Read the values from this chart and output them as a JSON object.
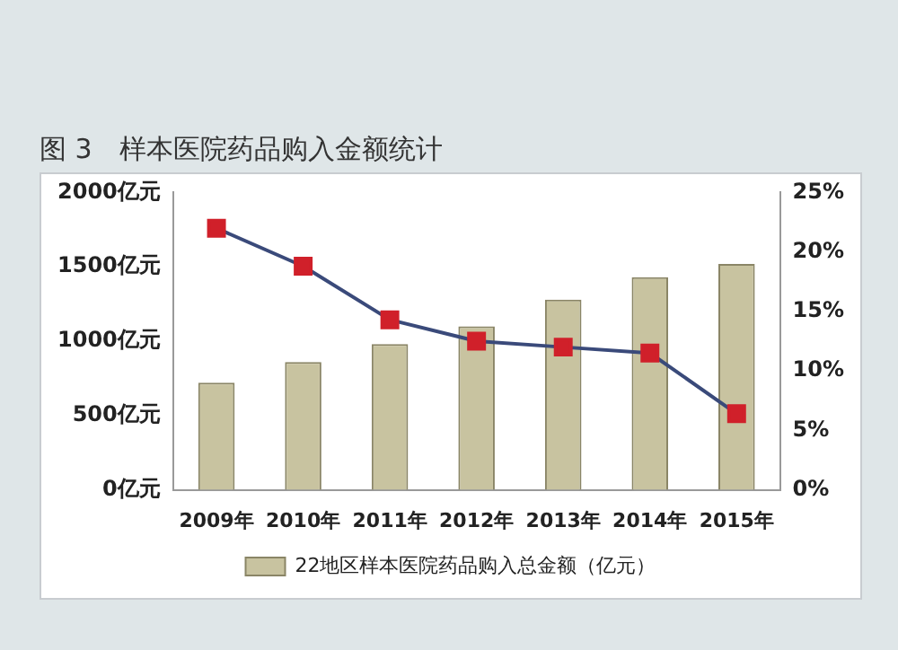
{
  "chart_data": {
    "type": "bar",
    "title": "图 3　样本医院药品购入金额统计",
    "categories": [
      "2009年",
      "2010年",
      "2011年",
      "2012年",
      "2013年",
      "2014年",
      "2015年"
    ],
    "series": [
      {
        "name": "22地区样本医院药品购入总金额（亿元）",
        "color": "#c8c3a0",
        "values": [
          720,
          860,
          980,
          1100,
          1280,
          1430,
          1520
        ]
      },
      {
        "type": "line",
        "axis": "y2",
        "color": "#3a4a7a",
        "values": [
          22,
          18.8,
          14.3,
          12.5,
          12,
          11.5,
          6.4
        ]
      }
    ],
    "ylim": [
      0,
      2000
    ],
    "yticks": [
      {
        "value": 0,
        "label": "0亿元"
      },
      {
        "value": 500,
        "label": "500亿元"
      },
      {
        "value": 1000,
        "label": "1000亿元"
      },
      {
        "value": 1500,
        "label": "1500亿元"
      },
      {
        "value": 2000,
        "label": "2000亿元"
      }
    ],
    "y2lim": [
      0,
      25
    ],
    "y2ticks": [
      {
        "value": 0,
        "label": "0%"
      },
      {
        "value": 5,
        "label": "5%"
      },
      {
        "value": 10,
        "label": "10%"
      },
      {
        "value": 15,
        "label": "15%"
      },
      {
        "value": 20,
        "label": "20%"
      },
      {
        "value": 25,
        "label": "25%"
      }
    ],
    "marker": "square",
    "grid": false,
    "legend": "bottom"
  }
}
